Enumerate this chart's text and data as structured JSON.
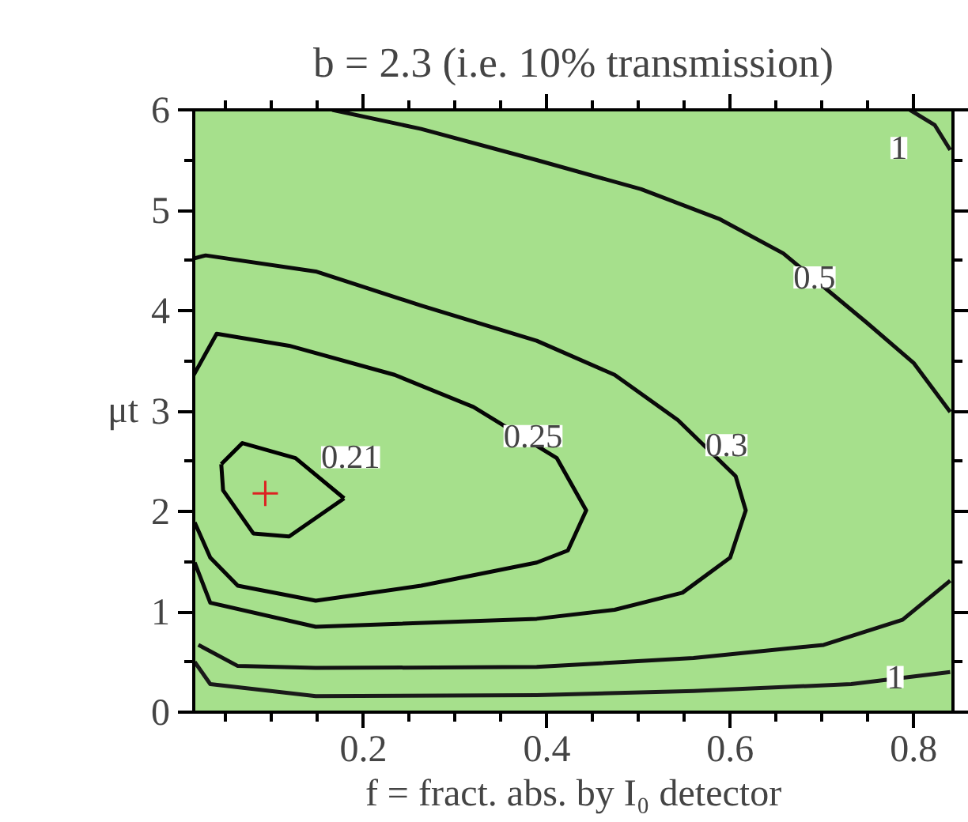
{
  "chart_data": {
    "type": "line",
    "title": "b = 2.3 (i.e. 10% transmission)",
    "xlabel": "f = fract. abs. by I₀ detector",
    "ylabel": "μt",
    "xlim": [
      0.015,
      0.843
    ],
    "ylim": [
      0,
      6
    ],
    "xticks": [
      {
        "value": 0.05,
        "label": null
      },
      {
        "value": 0.1,
        "label": null
      },
      {
        "value": 0.15,
        "label": null
      },
      0.2,
      {
        "value": 0.25,
        "label": null
      },
      {
        "value": 0.3,
        "label": null
      },
      {
        "value": 0.35,
        "label": null
      },
      0.4,
      {
        "value": 0.45,
        "label": null
      },
      {
        "value": 0.5,
        "label": null
      },
      {
        "value": 0.55,
        "label": null
      },
      0.6,
      {
        "value": 0.65,
        "label": null
      },
      {
        "value": 0.7,
        "label": null
      },
      {
        "value": 0.75,
        "label": null
      },
      0.8
    ],
    "yticks": [
      0,
      {
        "value": 0.5,
        "label": null
      },
      1,
      {
        "value": 1.5,
        "label": null
      },
      2,
      {
        "value": 2.5,
        "label": null
      },
      3,
      {
        "value": 3.5,
        "label": null
      },
      4,
      {
        "value": 4.5,
        "label": null
      },
      5,
      {
        "value": 5.5,
        "label": null
      },
      6
    ],
    "grid": false,
    "line_style": "solid",
    "marker": "none",
    "series": [
      {
        "color": "#000000",
        "x": [
          0.045,
          0.068,
          0.126,
          0.179
        ],
        "values": [
          2.47,
          2.68,
          2.53,
          2.13
        ]
      },
      {
        "color": "#040404",
        "x": [
          0.045,
          0.047,
          0.08,
          0.119,
          0.179
        ],
        "values": [
          2.47,
          2.21,
          1.78,
          1.75,
          2.13
        ]
      },
      {
        "color": "#060606",
        "x": [
          0.015,
          0.04,
          0.119,
          0.234,
          0.32,
          0.411,
          0.443,
          0.423,
          0.389,
          0.263,
          0.148,
          0.063,
          0.033,
          0.016
        ],
        "values": [
          3.36,
          3.77,
          3.65,
          3.36,
          3.04,
          2.53,
          2.01,
          1.61,
          1.49,
          1.26,
          1.11,
          1.26,
          1.54,
          1.89
        ]
      },
      {
        "color": "#0a0a0a",
        "x": [
          0.015,
          0.028,
          0.148,
          0.263,
          0.389,
          0.474,
          0.543,
          0.606,
          0.617,
          0.6,
          0.548,
          0.474,
          0.389,
          0.148,
          0.033,
          0.016
        ],
        "values": [
          4.52,
          4.55,
          4.39,
          4.05,
          3.7,
          3.36,
          2.91,
          2.35,
          2.01,
          1.54,
          1.19,
          1.02,
          0.93,
          0.85,
          1.09,
          1.49
        ]
      },
      {
        "color": "#0e0e0e",
        "x": [
          0.166,
          0.263,
          0.389,
          0.503,
          0.589,
          0.658,
          0.749,
          0.8,
          0.84
        ],
        "values": [
          6.0,
          5.81,
          5.5,
          5.21,
          4.91,
          4.57,
          3.88,
          3.48,
          2.99
        ]
      },
      {
        "color": "#121212",
        "x": [
          0.84,
          0.788,
          0.702,
          0.56,
          0.389,
          0.148,
          0.063,
          0.02
        ],
        "values": [
          1.31,
          0.92,
          0.67,
          0.54,
          0.45,
          0.44,
          0.46,
          0.67
        ]
      },
      {
        "color": "#161616",
        "x": [
          0.796,
          0.823,
          0.84
        ],
        "values": [
          6.0,
          5.85,
          5.6
        ]
      },
      {
        "color": "#1a1a1a",
        "x": [
          0.84,
          0.732,
          0.56,
          0.389,
          0.148,
          0.033,
          0.016
        ],
        "values": [
          0.4,
          0.28,
          0.21,
          0.17,
          0.16,
          0.28,
          0.5
        ]
      },
      {
        "type": "scatter",
        "marker": "cross",
        "color": "#dd2222",
        "x": [
          0.093
        ],
        "values": [
          2.18
        ]
      }
    ],
    "annotations": [
      {
        "text": "0.21",
        "x": 0.186,
        "y": 2.54
      },
      {
        "text": "0.25",
        "x": 0.385,
        "y": 2.75
      },
      {
        "text": "0.3",
        "x": 0.596,
        "y": 2.66
      },
      {
        "text": "0.5",
        "x": 0.692,
        "y": 4.33
      },
      {
        "text": "1",
        "x": 0.784,
        "y": 5.62
      },
      {
        "text": "1",
        "x": 0.78,
        "y": 0.35
      }
    ]
  }
}
